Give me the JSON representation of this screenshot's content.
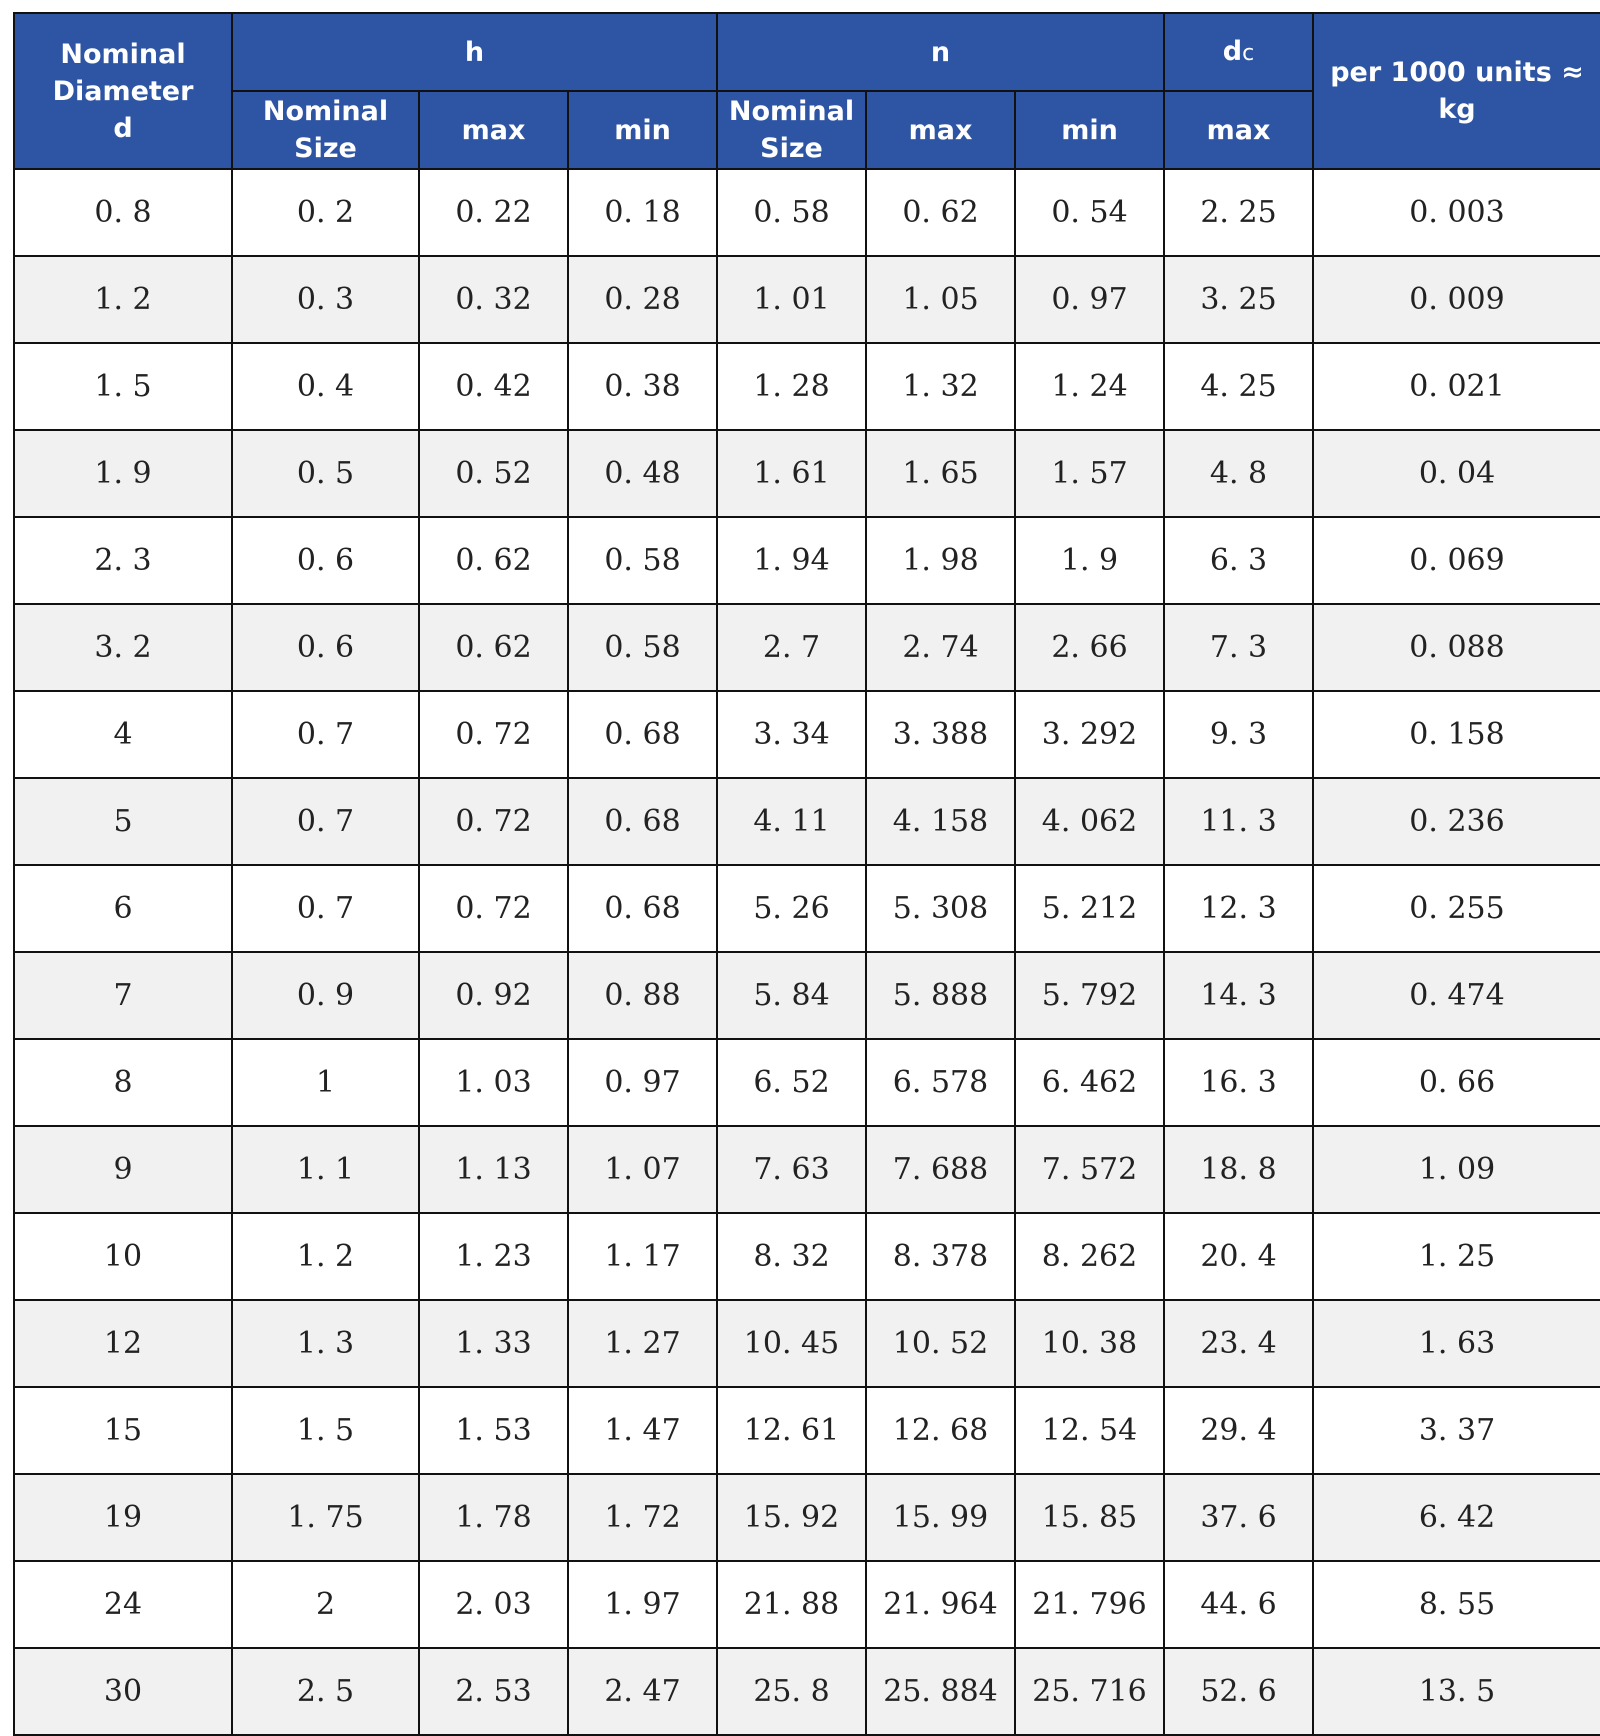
{
  "header": {
    "nominal_diameter": [
      "Nominal",
      "Diameter",
      "d"
    ],
    "h": "h",
    "n": "n",
    "dc_main": "d",
    "dc_sub": "c",
    "weight": [
      "per 1000 units ≈",
      "kg"
    ],
    "nominal_size_h": [
      "Nominal",
      "Size"
    ],
    "max_h": "max",
    "min_h": "min",
    "nominal_size_n": [
      "Nominal",
      "Size"
    ],
    "max_n": "max",
    "min_n": "min",
    "max_dc": "max"
  },
  "rows": [
    [
      "0. 8",
      "0. 2",
      "0. 22",
      "0. 18",
      "0. 58",
      "0. 62",
      "0. 54",
      "2. 25",
      "0. 003"
    ],
    [
      "1. 2",
      "0. 3",
      "0. 32",
      "0. 28",
      "1. 01",
      "1. 05",
      "0. 97",
      "3. 25",
      "0. 009"
    ],
    [
      "1. 5",
      "0. 4",
      "0. 42",
      "0. 38",
      "1. 28",
      "1. 32",
      "1. 24",
      "4. 25",
      "0. 021"
    ],
    [
      "1. 9",
      "0. 5",
      "0. 52",
      "0. 48",
      "1. 61",
      "1. 65",
      "1. 57",
      "4. 8",
      "0. 04"
    ],
    [
      "2. 3",
      "0. 6",
      "0. 62",
      "0. 58",
      "1. 94",
      "1. 98",
      "1. 9",
      "6. 3",
      "0. 069"
    ],
    [
      "3. 2",
      "0. 6",
      "0. 62",
      "0. 58",
      "2. 7",
      "2. 74",
      "2. 66",
      "7. 3",
      "0. 088"
    ],
    [
      "4",
      "0. 7",
      "0. 72",
      "0. 68",
      "3. 34",
      "3. 388",
      "3. 292",
      "9. 3",
      "0. 158"
    ],
    [
      "5",
      "0. 7",
      "0. 72",
      "0. 68",
      "4. 11",
      "4. 158",
      "4. 062",
      "11. 3",
      "0. 236"
    ],
    [
      "6",
      "0. 7",
      "0. 72",
      "0. 68",
      "5. 26",
      "5. 308",
      "5. 212",
      "12. 3",
      "0. 255"
    ],
    [
      "7",
      "0. 9",
      "0. 92",
      "0. 88",
      "5. 84",
      "5. 888",
      "5. 792",
      "14. 3",
      "0. 474"
    ],
    [
      "8",
      "1",
      "1. 03",
      "0. 97",
      "6. 52",
      "6. 578",
      "6. 462",
      "16. 3",
      "0. 66"
    ],
    [
      "9",
      "1. 1",
      "1. 13",
      "1. 07",
      "7. 63",
      "7. 688",
      "7. 572",
      "18. 8",
      "1. 09"
    ],
    [
      "10",
      "1. 2",
      "1. 23",
      "1. 17",
      "8. 32",
      "8. 378",
      "8. 262",
      "20. 4",
      "1. 25"
    ],
    [
      "12",
      "1. 3",
      "1. 33",
      "1. 27",
      "10. 45",
      "10. 52",
      "10. 38",
      "23. 4",
      "1. 63"
    ],
    [
      "15",
      "1. 5",
      "1. 53",
      "1. 47",
      "12. 61",
      "12. 68",
      "12. 54",
      "29. 4",
      "3. 37"
    ],
    [
      "19",
      "1. 75",
      "1. 78",
      "1. 72",
      "15. 92",
      "15. 99",
      "15. 85",
      "37. 6",
      "6. 42"
    ],
    [
      "24",
      "2",
      "2. 03",
      "1. 97",
      "21. 88",
      "21. 964",
      "21. 796",
      "44. 6",
      "8. 55"
    ],
    [
      "30",
      "2. 5",
      "2. 53",
      "2. 47",
      "25. 8",
      "25. 884",
      "25. 716",
      "52. 6",
      "13. 5"
    ]
  ]
}
